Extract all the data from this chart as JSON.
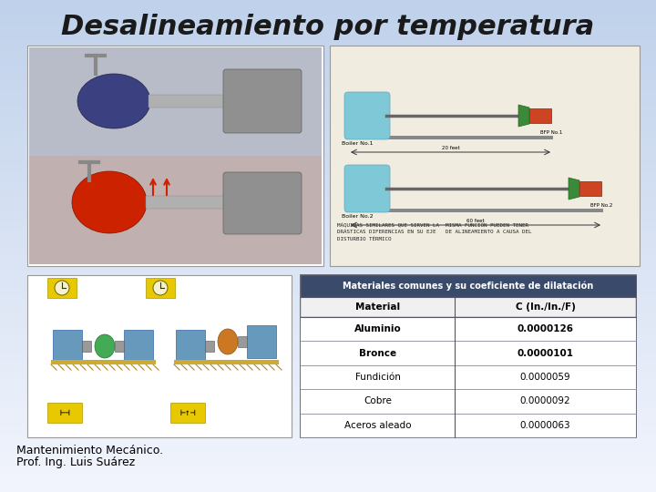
{
  "title": "Desalineamiento por temperatura",
  "title_fontsize": 22,
  "title_style": "italic",
  "footer_line1": "Mantenimiento Mecánico.",
  "footer_line2": "Prof. Ing. Luis Suárez",
  "footer_fontsize": 9,
  "table_title": "Materiales comunes y su coeficiente de dilatación",
  "table_headers": [
    "Material",
    "C (In./In./F)"
  ],
  "table_rows": [
    [
      "Aluminio",
      "0.0000126"
    ],
    [
      "Bronce",
      "0.0000101"
    ],
    [
      "Fundición",
      "0.0000059"
    ],
    [
      "Cobre",
      "0.0000092"
    ],
    [
      "Aceros aleado",
      "0.0000063"
    ]
  ],
  "table_header_bold": [
    "Aluminio",
    "Bronce"
  ],
  "bg_color": "#c0d0e8",
  "bg_color2": "#e8eef8",
  "photo_left_bg": "#e0e0e0",
  "photo_right_bg": "#e8e4d8",
  "table_header_color": "#3a4a6a",
  "table_title_color": "#3a4a6a"
}
